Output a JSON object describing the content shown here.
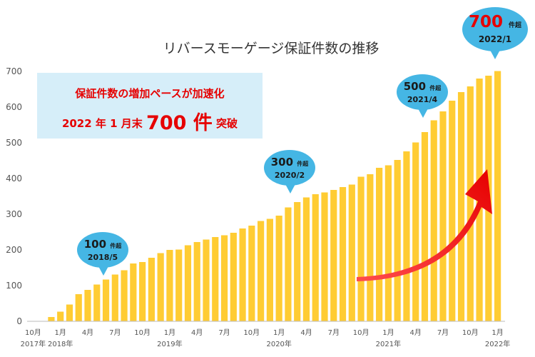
{
  "chart_data": {
    "type": "bar",
    "title": "リバースモーゲージ保証件数の推移",
    "xlabel": "",
    "ylabel": "",
    "ylim": [
      0,
      700
    ],
    "yticks": [
      "0",
      "100",
      "200",
      "300",
      "400",
      "500",
      "600",
      "700"
    ],
    "grid": false,
    "bar_color": "#ffcc33",
    "categories": [
      "2017/10",
      "2017/11",
      "2017/12",
      "2018/1",
      "2018/2",
      "2018/3",
      "2018/4",
      "2018/5",
      "2018/6",
      "2018/7",
      "2018/8",
      "2018/9",
      "2018/10",
      "2018/11",
      "2018/12",
      "2019/1",
      "2019/2",
      "2019/3",
      "2019/4",
      "2019/5",
      "2019/6",
      "2019/7",
      "2019/8",
      "2019/9",
      "2019/10",
      "2019/11",
      "2019/12",
      "2020/1",
      "2020/2",
      "2020/3",
      "2020/4",
      "2020/5",
      "2020/6",
      "2020/7",
      "2020/8",
      "2020/9",
      "2020/10",
      "2020/11",
      "2020/12",
      "2021/1",
      "2021/2",
      "2021/3",
      "2021/4",
      "2021/5",
      "2021/6",
      "2021/7",
      "2021/8",
      "2021/9",
      "2021/10",
      "2021/11",
      "2021/12",
      "2022/1"
    ],
    "values": [
      0,
      0,
      12,
      27,
      47,
      76,
      88,
      103,
      117,
      131,
      143,
      162,
      166,
      178,
      191,
      200,
      201,
      213,
      222,
      229,
      236,
      241,
      248,
      260,
      268,
      281,
      287,
      296,
      319,
      334,
      347,
      356,
      361,
      368,
      376,
      383,
      405,
      412,
      430,
      437,
      452,
      476,
      501,
      530,
      563,
      588,
      618,
      642,
      658,
      680,
      688,
      701
    ],
    "x_tick_labels": [
      {
        "i": 0,
        "text": "10月"
      },
      {
        "i": 3,
        "text": "1月"
      },
      {
        "i": 6,
        "text": "4月"
      },
      {
        "i": 9,
        "text": "7月"
      },
      {
        "i": 12,
        "text": "10月"
      },
      {
        "i": 15,
        "text": "1月"
      },
      {
        "i": 18,
        "text": "4月"
      },
      {
        "i": 21,
        "text": "7月"
      },
      {
        "i": 24,
        "text": "10月"
      },
      {
        "i": 27,
        "text": "1月"
      },
      {
        "i": 30,
        "text": "4月"
      },
      {
        "i": 33,
        "text": "7月"
      },
      {
        "i": 36,
        "text": "10月"
      },
      {
        "i": 39,
        "text": "1月"
      },
      {
        "i": 42,
        "text": "4月"
      },
      {
        "i": 45,
        "text": "7月"
      },
      {
        "i": 48,
        "text": "10月"
      },
      {
        "i": 51,
        "text": "1月"
      }
    ],
    "year_labels": [
      {
        "i": 0,
        "text": "2017年"
      },
      {
        "i": 3,
        "text": "2018年"
      },
      {
        "i": 15,
        "text": "2019年"
      },
      {
        "i": 27,
        "text": "2020年"
      },
      {
        "i": 39,
        "text": "2021年"
      },
      {
        "i": 51,
        "text": "2022年"
      }
    ]
  },
  "promo": {
    "line1": "保証件数の増加ペースが加速化",
    "line2_prefix": "2022 年 1 月末",
    "line2_big": "700 件",
    "line2_suffix": "突破"
  },
  "callouts": [
    {
      "num": "100",
      "unit": "件超",
      "date": "2018/5"
    },
    {
      "num": "300",
      "unit": "件超",
      "date": "2020/2"
    },
    {
      "num": "500",
      "unit": "件超",
      "date": "2021/4"
    },
    {
      "num": "700",
      "unit": "件超",
      "date": "2022/1"
    }
  ],
  "colors": {
    "arrow": "#ff1a1a",
    "bubble": "#45b6e4",
    "accent_text": "#e60000",
    "promo_bg": "#d6eef9"
  }
}
